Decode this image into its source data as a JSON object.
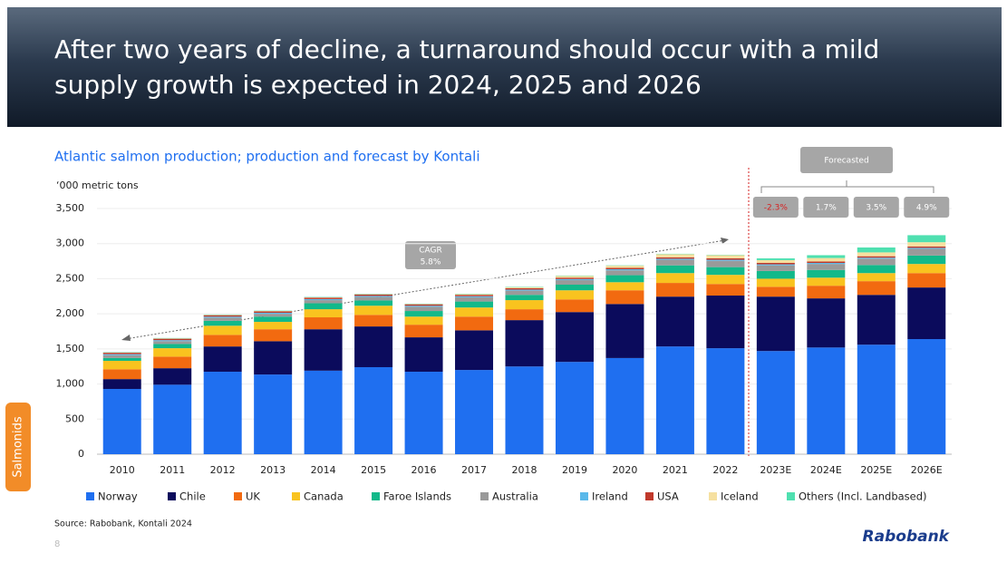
{
  "header": {
    "title_line1": "After two years of decline, a turnaround should occur with a mild",
    "title_line2": "supply growth is expected in 2024, 2025 and 2026"
  },
  "side_tab": "Salmonids",
  "source": "Source: Rabobank, Kontali 2024",
  "page_number": "8",
  "logo": "Rabobank",
  "chart_data": {
    "type": "stacked_bar",
    "title": "Atlantic salmon production; production and forecast by Kontali",
    "y_label": "‘000 metric tons",
    "categories": [
      "2010",
      "2011",
      "2012",
      "2013",
      "2014",
      "2015",
      "2016",
      "2017",
      "2018",
      "2019",
      "2020",
      "2021",
      "2022",
      "2023E",
      "2024E",
      "2025E",
      "2026E"
    ],
    "series": [
      {
        "name": "Norway",
        "color": "#1f6ff0",
        "values": [
          930,
          990,
          1175,
          1135,
          1190,
          1240,
          1175,
          1200,
          1250,
          1315,
          1370,
          1535,
          1510,
          1470,
          1520,
          1560,
          1640
        ]
      },
      {
        "name": "Chile",
        "color": "#0b0b5c",
        "values": [
          140,
          235,
          360,
          475,
          590,
          580,
          490,
          565,
          660,
          710,
          770,
          710,
          750,
          775,
          700,
          710,
          735
        ]
      },
      {
        "name": "UK",
        "color": "#f26a10",
        "values": [
          140,
          165,
          165,
          170,
          170,
          165,
          180,
          195,
          155,
          180,
          195,
          195,
          165,
          140,
          180,
          195,
          205
        ]
      },
      {
        "name": "Canada",
        "color": "#f9c31f",
        "values": [
          120,
          120,
          130,
          105,
          115,
          130,
          115,
          130,
          130,
          130,
          115,
          140,
          130,
          115,
          115,
          115,
          130
        ]
      },
      {
        "name": "Faroe Islands",
        "color": "#12b98a",
        "values": [
          40,
          60,
          70,
          75,
          85,
          75,
          80,
          85,
          75,
          80,
          100,
          110,
          110,
          110,
          110,
          115,
          120
        ]
      },
      {
        "name": "Australia",
        "color": "#9a9a9a",
        "values": [
          40,
          40,
          45,
          40,
          45,
          50,
          60,
          60,
          60,
          65,
          70,
          80,
          90,
          80,
          85,
          90,
          95
        ]
      },
      {
        "name": "Ireland",
        "color": "#5ab9ea",
        "values": [
          15,
          15,
          15,
          15,
          15,
          15,
          15,
          15,
          15,
          15,
          15,
          15,
          15,
          15,
          15,
          15,
          15
        ]
      },
      {
        "name": "USA",
        "color": "#c0392b",
        "values": [
          20,
          20,
          20,
          20,
          20,
          20,
          20,
          20,
          20,
          20,
          20,
          20,
          20,
          20,
          20,
          20,
          20
        ]
      },
      {
        "name": "Iceland",
        "color": "#f6e0a0",
        "values": [
          5,
          5,
          5,
          5,
          5,
          5,
          5,
          10,
          15,
          25,
          30,
          45,
          45,
          40,
          50,
          55,
          60
        ]
      },
      {
        "name": "Others (Incl. Landbased)",
        "color": "#4fe0b0",
        "values": [
          5,
          5,
          5,
          5,
          5,
          5,
          5,
          5,
          5,
          5,
          5,
          5,
          5,
          25,
          40,
          70,
          100
        ]
      }
    ],
    "ylim": [
      0,
      3500
    ],
    "yticks": [
      0,
      500,
      {
        "value": 1000,
        "label": "1,000"
      },
      {
        "value": 1500,
        "label": "1,500"
      },
      {
        "value": 2000,
        "label": "2,000"
      },
      {
        "value": 2500,
        "label": "2,500"
      },
      {
        "value": 3000,
        "label": "3,000"
      },
      {
        "value": 3500,
        "label": "3,500"
      }
    ],
    "annotations": {
      "cagr_label": "CAGR",
      "cagr_value": "5.8%",
      "forecast_label": "Forecasted",
      "growth": [
        "-2.3%",
        "1.7%",
        "3.5%",
        "4.9%"
      ]
    }
  }
}
